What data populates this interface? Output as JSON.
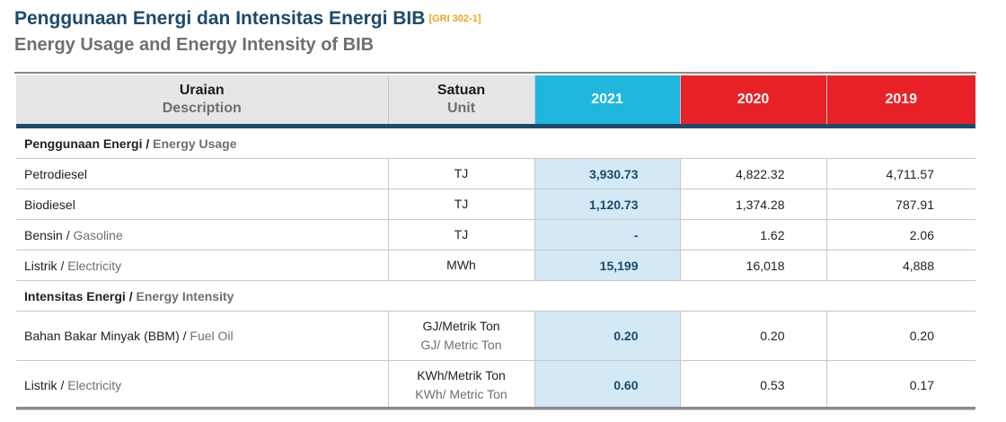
{
  "title": {
    "line1": "Penggunaan Energi dan Intensitas Energi BIB",
    "gri": "[GRI 302-1]",
    "line2": "Energy Usage and Energy Intensity of BIB"
  },
  "colors": {
    "navy": "#1d4a6b",
    "cyan_2021": "#1fb7de",
    "red_years": "#e82127",
    "highlight_2021": "#d3e9f5",
    "gri_orange": "#f5a21b"
  },
  "table": {
    "headers": {
      "description_id": "Uraian",
      "description_en": "Description",
      "unit_id": "Satuan",
      "unit_en": "Unit",
      "years": [
        "2021",
        "2020",
        "2019"
      ]
    },
    "sections": [
      {
        "title_id": "Penggunaan Energi",
        "title_en": "Energy Usage",
        "rows": [
          {
            "label_id": "Petrodiesel",
            "label_en": "",
            "unit_id": "TJ",
            "unit_en": "",
            "v2021": "3,930.73",
            "v2020": "4,822.32",
            "v2019": "4,711.57"
          },
          {
            "label_id": "Biodiesel",
            "label_en": "",
            "unit_id": "TJ",
            "unit_en": "",
            "v2021": "1,120.73",
            "v2020": "1,374.28",
            "v2019": "787.91"
          },
          {
            "label_id": "Bensin",
            "label_en": "Gasoline",
            "unit_id": "TJ",
            "unit_en": "",
            "v2021": "-",
            "v2020": "1.62",
            "v2019": "2.06"
          },
          {
            "label_id": "Listrik",
            "label_en": "Electricity",
            "unit_id": "MWh",
            "unit_en": "",
            "v2021": "15,199",
            "v2020": "16,018",
            "v2019": "4,888"
          }
        ]
      },
      {
        "title_id": "Intensitas Energi",
        "title_en": "Energy Intensity",
        "rows": [
          {
            "label_id": "Bahan Bakar Minyak (BBM)",
            "label_en": "Fuel Oil",
            "unit_id": "GJ/Metrik Ton",
            "unit_en": "GJ/ Metric Ton",
            "v2021": "0.20",
            "v2020": "0.20",
            "v2019": "0.20"
          },
          {
            "label_id": "Listrik",
            "label_en": "Electricity",
            "unit_id": "KWh/Metrik Ton",
            "unit_en": "KWh/ Metric Ton",
            "v2021": "0.60",
            "v2020": "0.53",
            "v2019": "0.17"
          }
        ]
      }
    ]
  }
}
